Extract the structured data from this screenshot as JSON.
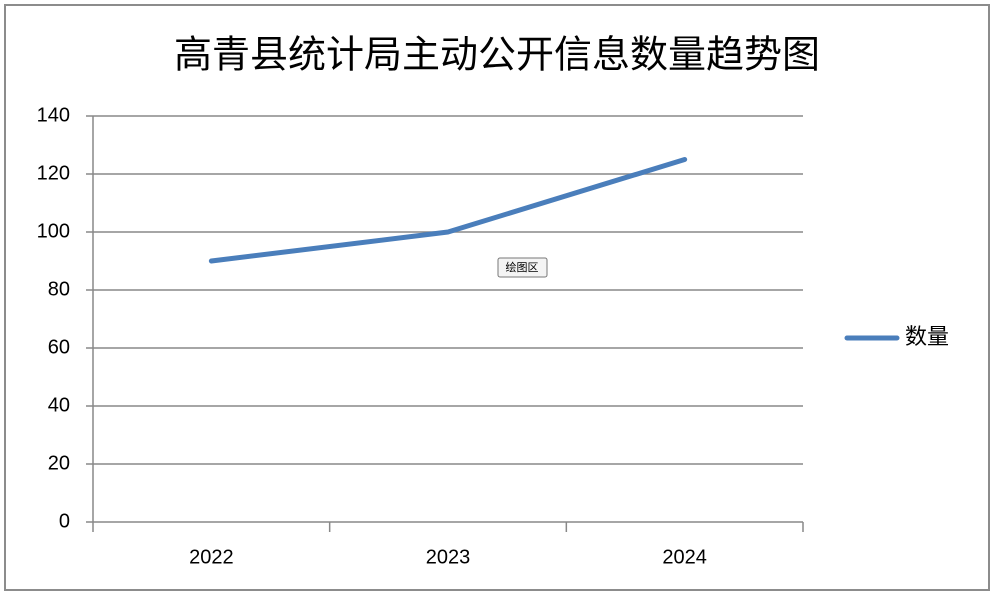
{
  "chart_data": {
    "type": "line",
    "title": "高青县统计局主动公开信息数量趋势图",
    "categories": [
      "2022",
      "2023",
      "2024"
    ],
    "series": [
      {
        "name": "数量",
        "color": "#4a7ebb",
        "values": [
          90,
          100,
          125
        ]
      }
    ],
    "ylim": [
      0,
      140
    ],
    "yticks": [
      0,
      20,
      40,
      60,
      80,
      100,
      120,
      140
    ],
    "grid": true,
    "legend": "right",
    "tooltip": "绘图区"
  }
}
